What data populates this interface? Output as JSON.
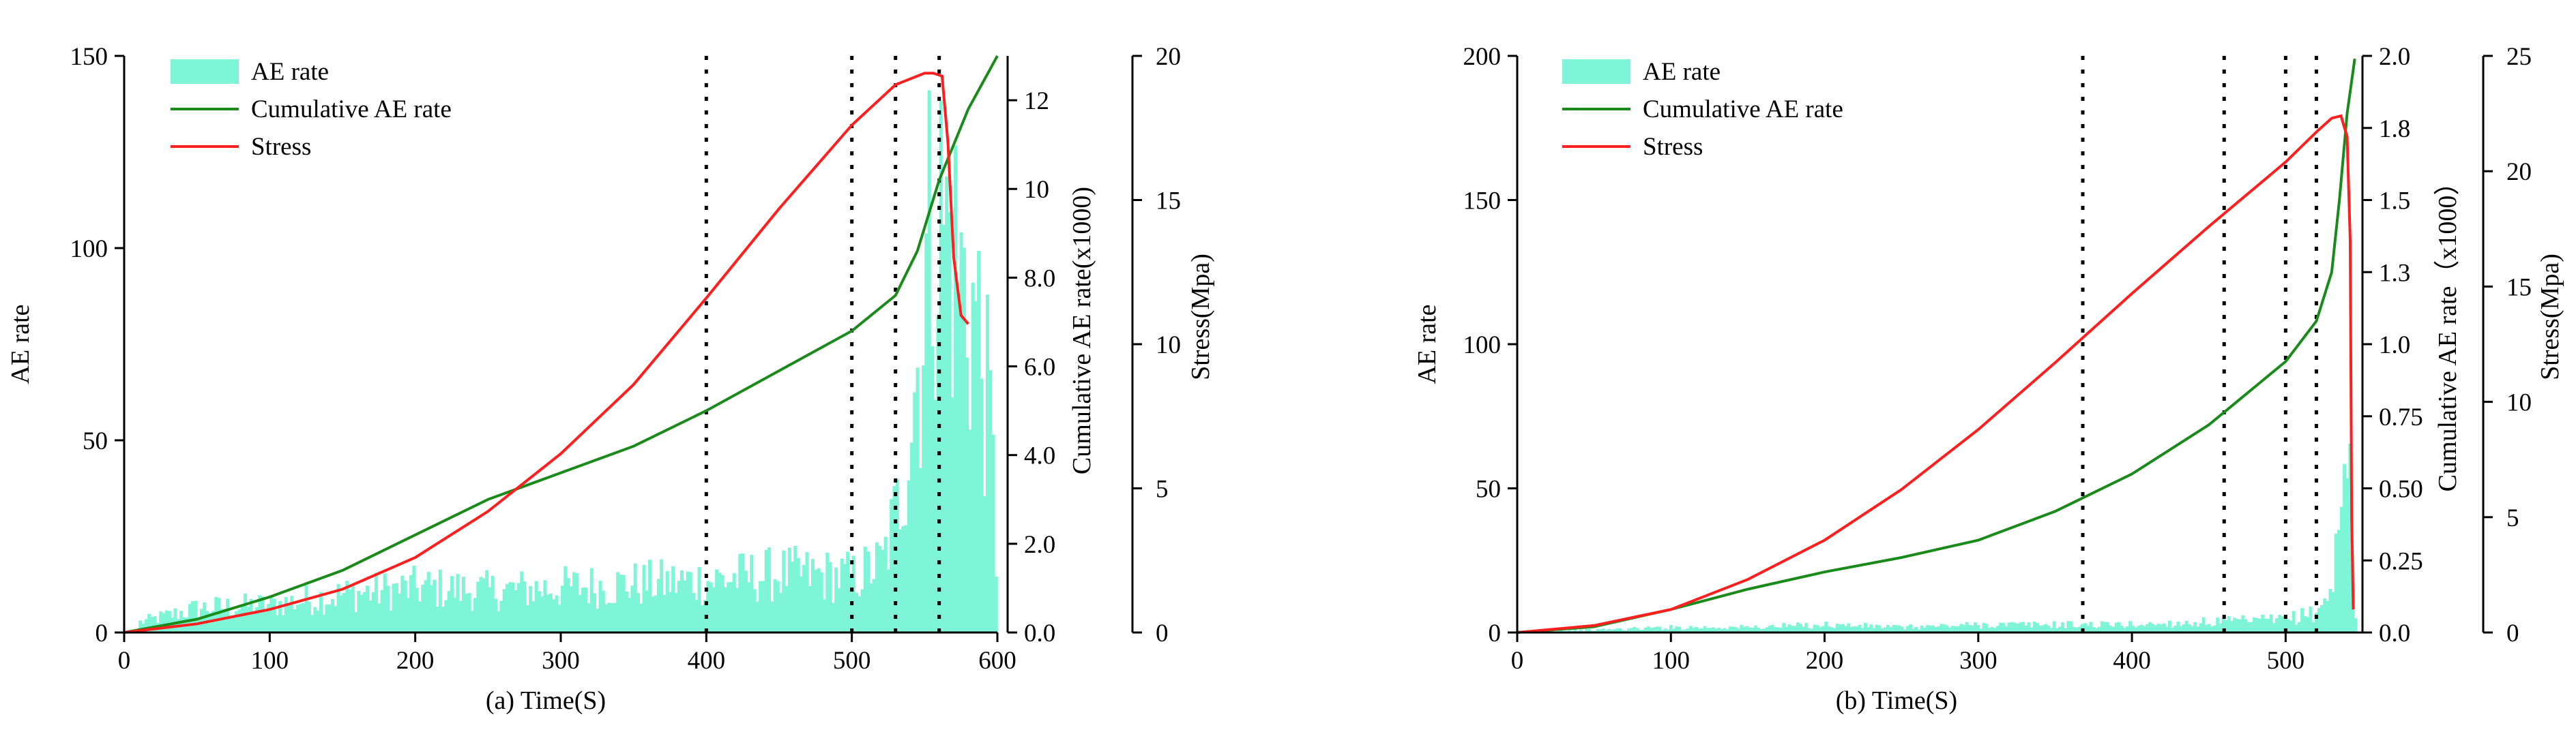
{
  "colors": {
    "ae": "#7ff5d7",
    "cum": "#1a8a1a",
    "stress": "#ff1f1f",
    "dash": "#000000"
  },
  "chart_data": [
    {
      "type": "bar+line",
      "caption": "(a)  Time(S)",
      "xlabel": "Time(S)",
      "xlim": [
        0,
        600
      ],
      "xticks": [
        0,
        100,
        200,
        300,
        400,
        500,
        600
      ],
      "left_axis": {
        "label": "AE rate",
        "lim": [
          0,
          150
        ],
        "ticks": [
          0,
          50,
          100,
          150
        ]
      },
      "cum_axis": {
        "label": "Cumulative AE rate(x1000)",
        "lim": [
          0,
          13
        ],
        "ticks": [
          0,
          2,
          4,
          6,
          8,
          10,
          12
        ],
        "tick_labels": [
          "0.0",
          "2.0",
          "4.0",
          "6.0",
          "8.0",
          "10",
          "12"
        ]
      },
      "stress_axis": {
        "label": "Stress(Mpa)",
        "lim": [
          0,
          20
        ],
        "ticks": [
          0,
          5,
          10,
          15,
          20
        ],
        "tick_labels": [
          "0",
          "5",
          "10",
          "15",
          "20"
        ]
      },
      "legend": [
        "AE rate",
        "Cumulative AE rate",
        "Stress"
      ],
      "dashed_lines_x": [
        400,
        500,
        530,
        560
      ],
      "ae_profile": {
        "x": [
          10,
          50,
          100,
          150,
          200,
          250,
          300,
          350,
          400,
          450,
          500,
          520,
          530,
          545,
          555,
          565,
          575,
          585,
          595,
          600
        ],
        "y": [
          3,
          7,
          8,
          11,
          13,
          12,
          13,
          14,
          15,
          17,
          16,
          20,
          35,
          80,
          125,
          115,
          100,
          90,
          55,
          0
        ],
        "max_x": 600
      },
      "cumulative": {
        "x": [
          0,
          50,
          100,
          150,
          200,
          250,
          300,
          350,
          400,
          450,
          500,
          530,
          545,
          560,
          580,
          600
        ],
        "y": [
          0,
          0.3,
          0.8,
          1.4,
          2.2,
          3.0,
          3.6,
          4.2,
          5.0,
          5.9,
          6.8,
          7.6,
          8.6,
          10.2,
          11.8,
          13.0
        ]
      },
      "stress": {
        "x": [
          0,
          50,
          100,
          150,
          200,
          250,
          300,
          350,
          400,
          450,
          500,
          530,
          550,
          556,
          562,
          566,
          570,
          575,
          580
        ],
        "y": [
          0,
          0.3,
          0.8,
          1.5,
          2.6,
          4.2,
          6.2,
          8.6,
          11.6,
          14.7,
          17.6,
          19.0,
          19.4,
          19.4,
          19.3,
          17.0,
          13.0,
          11.0,
          10.7
        ]
      }
    },
    {
      "type": "bar+line",
      "caption": "(b)    Time(S)",
      "xlabel": "Time(S)",
      "xlim": [
        0,
        550
      ],
      "xticks": [
        0,
        100,
        200,
        300,
        400,
        500
      ],
      "left_axis": {
        "label": "AE rate",
        "lim": [
          0,
          200
        ],
        "ticks": [
          0,
          50,
          100,
          150,
          200
        ]
      },
      "cum_axis": {
        "label": "Cumulative AE rate（x1000）",
        "lim": [
          0,
          2.0
        ],
        "ticks": [
          0,
          0.25,
          0.5,
          0.75,
          1.0,
          1.25,
          1.5,
          1.75,
          2.0
        ],
        "tick_labels": [
          "0.0",
          "0.25",
          "0.50",
          "0.75",
          "1.0",
          "1.3",
          "1.5",
          "1.8",
          "2.0"
        ]
      },
      "stress_axis": {
        "label": "Stress(Mpa)",
        "lim": [
          0,
          25
        ],
        "ticks": [
          0,
          5,
          10,
          15,
          20,
          25
        ],
        "tick_labels": [
          "0",
          "5",
          "10",
          "15",
          "20",
          "25"
        ]
      },
      "legend": [
        "AE rate",
        "Cumulative AE rate",
        "Stress"
      ],
      "dashed_lines_x": [
        368,
        460,
        500,
        520
      ],
      "ae_profile": {
        "x": [
          0,
          50,
          100,
          150,
          200,
          250,
          300,
          350,
          400,
          450,
          500,
          520,
          530,
          535,
          540,
          545
        ],
        "y": [
          0.5,
          1,
          2,
          2,
          3,
          2,
          3,
          3,
          3,
          4,
          5,
          8,
          20,
          45,
          70,
          0
        ],
        "max_x": 545
      },
      "cumulative": {
        "x": [
          0,
          50,
          100,
          150,
          200,
          250,
          300,
          350,
          400,
          450,
          500,
          520,
          530,
          535,
          540,
          545
        ],
        "y": [
          0,
          0.02,
          0.08,
          0.15,
          0.21,
          0.26,
          0.32,
          0.42,
          0.55,
          0.72,
          0.94,
          1.08,
          1.25,
          1.5,
          1.8,
          1.99
        ]
      },
      "stress": {
        "x": [
          0,
          50,
          100,
          150,
          200,
          250,
          300,
          350,
          400,
          450,
          500,
          520,
          530,
          536,
          540,
          542,
          543,
          544
        ],
        "y": [
          0,
          0.3,
          1.0,
          2.3,
          4.0,
          6.2,
          8.8,
          11.7,
          14.7,
          17.6,
          20.4,
          21.7,
          22.3,
          22.4,
          21.5,
          17.0,
          5.0,
          1.0
        ]
      }
    }
  ]
}
